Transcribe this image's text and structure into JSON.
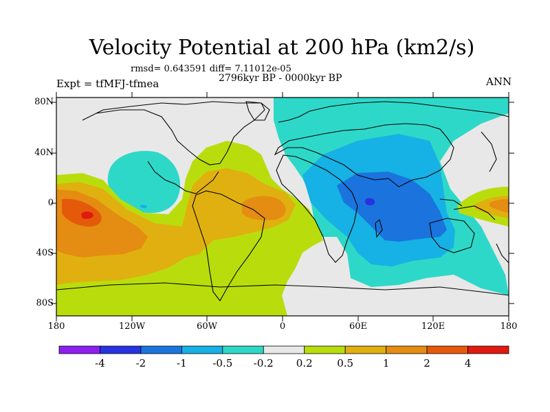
{
  "title": "Velocity Potential at 200 hPa (km2/s)",
  "stats": "rmsd= 0.643591 diff= 7.11012e-05",
  "period": "2796kyr BP - 0000kyr BP",
  "expt": "Expt = tfMFJ-tfmea",
  "season": "ANN",
  "x_ticks": [
    "180",
    "120W",
    "60W",
    "0",
    "60E",
    "120E",
    "180"
  ],
  "y_ticks": [
    "80N",
    "40N",
    "0",
    "40S",
    "80S"
  ],
  "colorbar": {
    "colors": [
      "#8c1ff0",
      "#2733e0",
      "#1b74dd",
      "#16b1e5",
      "#2ed8c8",
      "#e8e8e8",
      "#b9dd0c",
      "#e0b010",
      "#e58c12",
      "#e55a0a",
      "#e01a10"
    ],
    "labels": [
      "-4",
      "-2",
      "-1",
      "-0.5",
      "-0.2",
      "0.2",
      "0.5",
      "1",
      "2",
      "4"
    ]
  }
}
